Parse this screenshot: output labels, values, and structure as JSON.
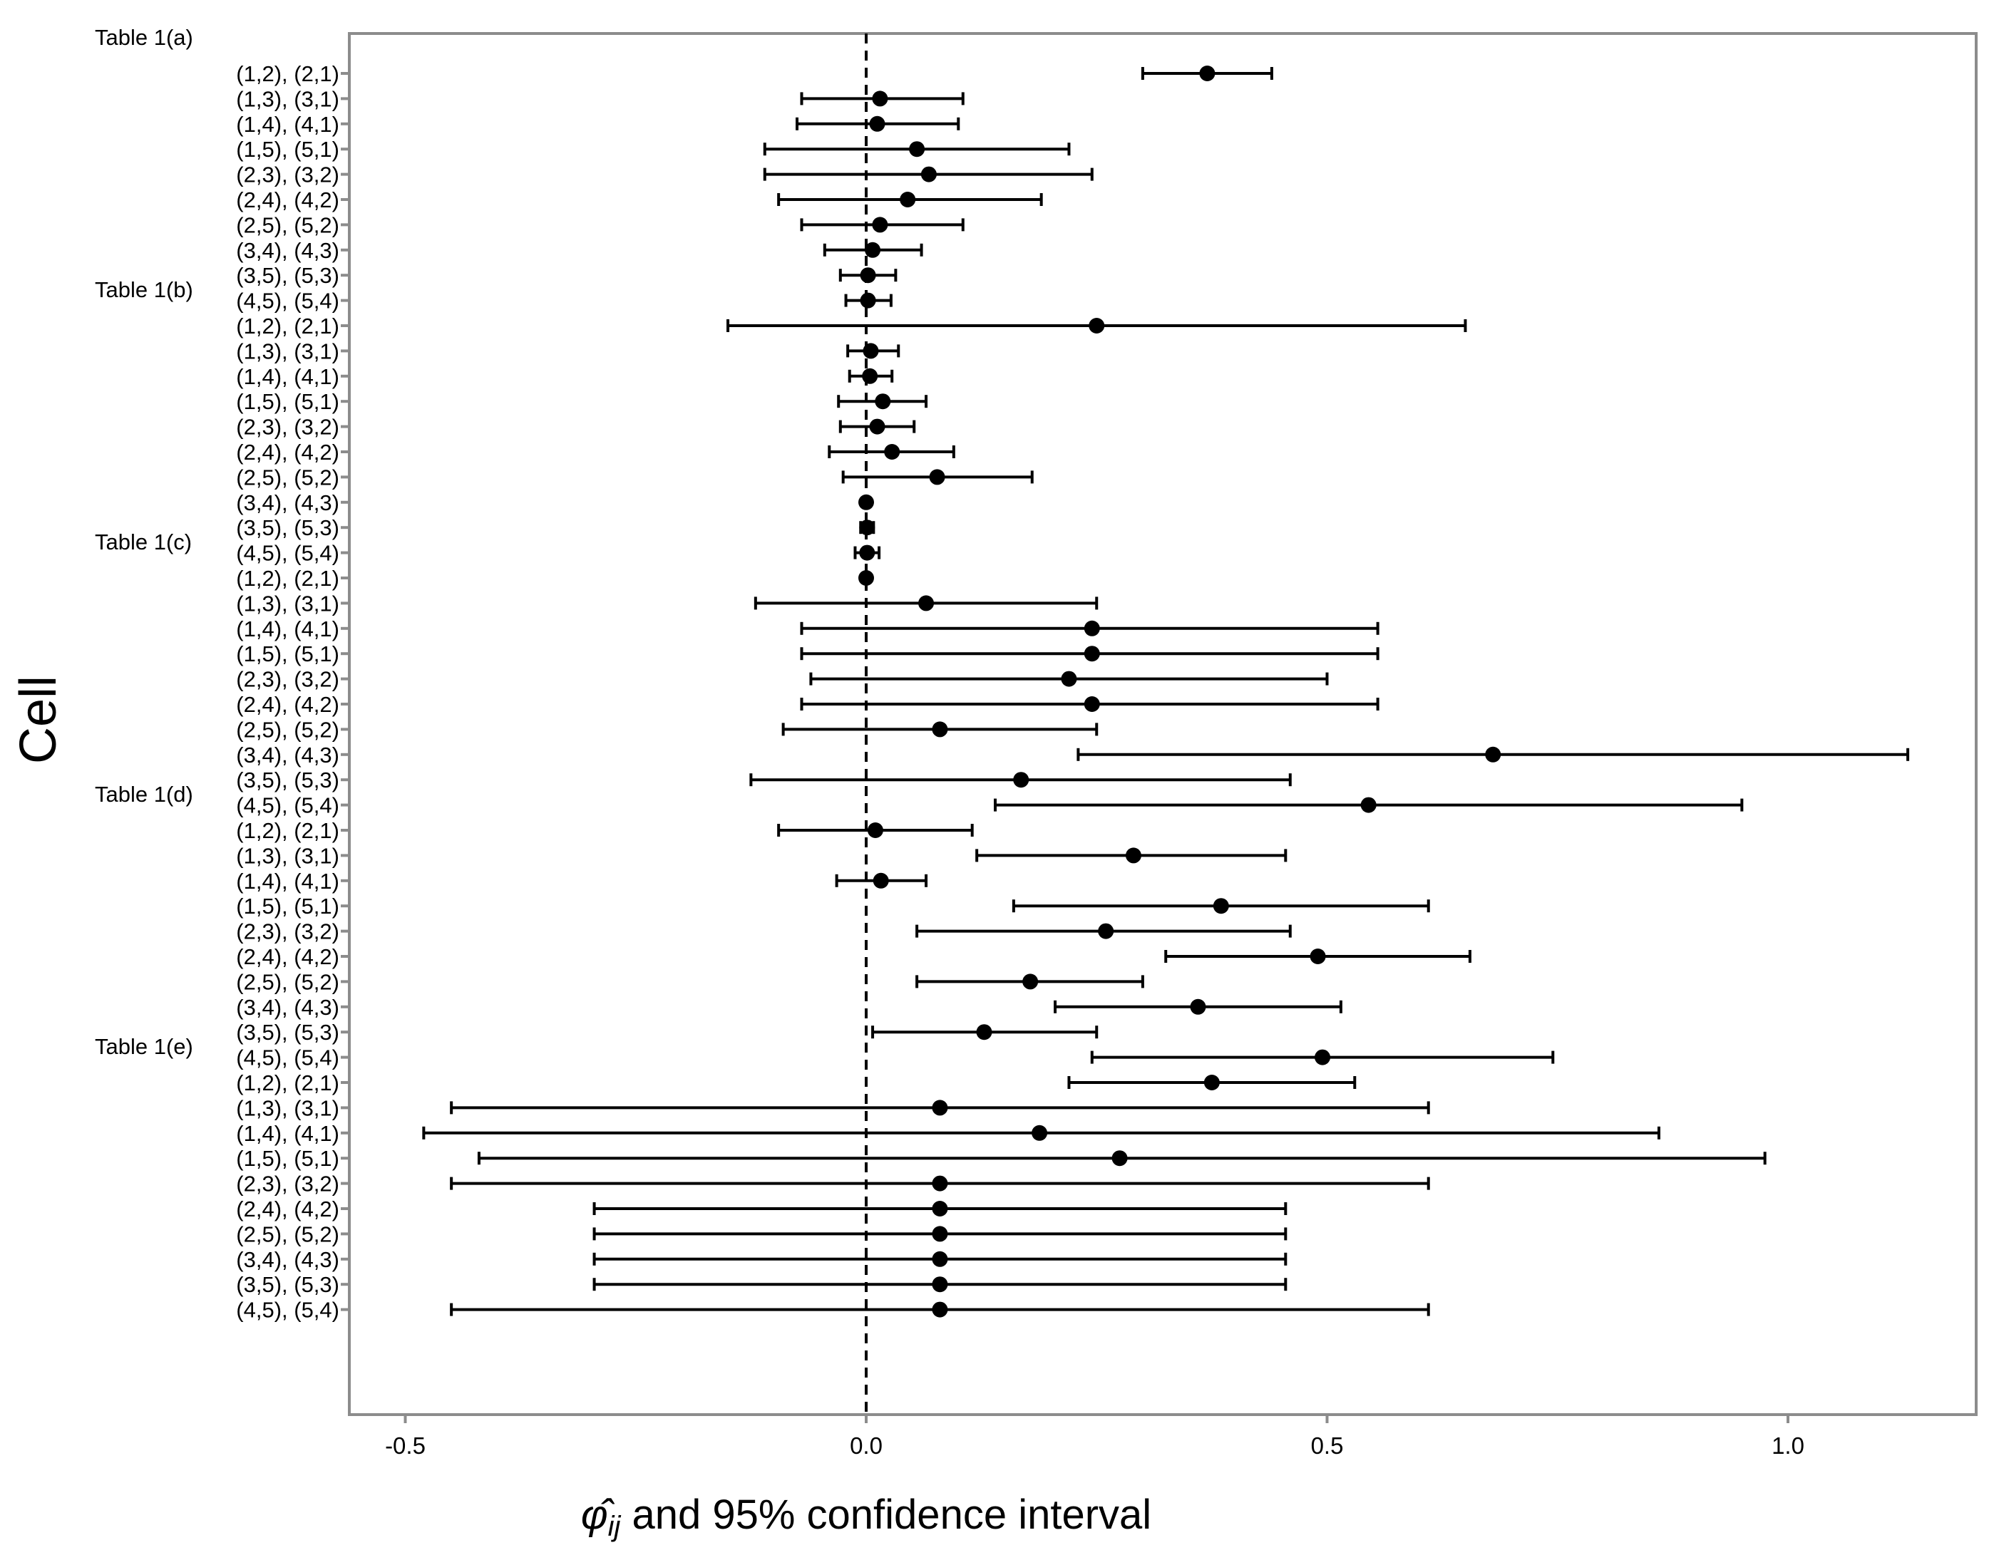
{
  "chart_data": {
    "type": "forest",
    "xlabel": "φ̂ij and 95% confidence interval",
    "xlabel_parts": {
      "symbol": "φ̂",
      "subscript": "ij",
      "rest": "and 95% confidence interval"
    },
    "ylabel": "Cell",
    "xlim": [
      -0.5,
      1.17
    ],
    "xticks": [
      -0.5,
      0.0,
      0.5,
      1.0
    ],
    "xtick_labels": [
      "-0.5",
      "0.0",
      "0.5",
      "1.0"
    ],
    "reference_line": 0.0,
    "reference_line_style": "dashed",
    "grid": false,
    "groups": [
      {
        "label": "Table 1(a)",
        "rows": [
          {
            "cell": "(1,2), (2,1)",
            "estimate": 0.37,
            "lower": 0.3,
            "upper": 0.44
          },
          {
            "cell": "(1,3), (3,1)",
            "estimate": 0.015,
            "lower": -0.07,
            "upper": 0.105
          },
          {
            "cell": "(1,4), (4,1)",
            "estimate": 0.012,
            "lower": -0.075,
            "upper": 0.1
          },
          {
            "cell": "(1,5), (5,1)",
            "estimate": 0.055,
            "lower": -0.11,
            "upper": 0.22
          },
          {
            "cell": "(2,3), (3,2)",
            "estimate": 0.068,
            "lower": -0.11,
            "upper": 0.245
          },
          {
            "cell": "(2,4), (4,2)",
            "estimate": 0.045,
            "lower": -0.095,
            "upper": 0.19
          },
          {
            "cell": "(2,5), (5,2)",
            "estimate": 0.015,
            "lower": -0.07,
            "upper": 0.105
          },
          {
            "cell": "(3,4), (4,3)",
            "estimate": 0.007,
            "lower": -0.045,
            "upper": 0.06
          },
          {
            "cell": "(3,5), (5,3)",
            "estimate": 0.002,
            "lower": -0.028,
            "upper": 0.032
          },
          {
            "cell": "(4,5), (5,4)",
            "estimate": 0.002,
            "lower": -0.022,
            "upper": 0.027
          }
        ]
      },
      {
        "label": "Table 1(b)",
        "rows": [
          {
            "cell": "(1,2), (2,1)",
            "estimate": 0.25,
            "lower": -0.15,
            "upper": 0.65
          },
          {
            "cell": "(1,3), (3,1)",
            "estimate": 0.005,
            "lower": -0.02,
            "upper": 0.035
          },
          {
            "cell": "(1,4), (4,1)",
            "estimate": 0.004,
            "lower": -0.018,
            "upper": 0.028
          },
          {
            "cell": "(1,5), (5,1)",
            "estimate": 0.018,
            "lower": -0.03,
            "upper": 0.065
          },
          {
            "cell": "(2,3), (3,2)",
            "estimate": 0.012,
            "lower": -0.028,
            "upper": 0.052
          },
          {
            "cell": "(2,4), (4,2)",
            "estimate": 0.028,
            "lower": -0.04,
            "upper": 0.095
          },
          {
            "cell": "(2,5), (5,2)",
            "estimate": 0.077,
            "lower": -0.025,
            "upper": 0.18
          },
          {
            "cell": "(3,4), (4,3)",
            "estimate": 0.0,
            "lower": 0.0,
            "upper": 0.0
          },
          {
            "cell": "(3,5), (5,3)",
            "estimate": 0.001,
            "lower": -0.006,
            "upper": 0.008
          },
          {
            "cell": "(4,5), (5,4)",
            "estimate": 0.001,
            "lower": -0.012,
            "upper": 0.014
          }
        ]
      },
      {
        "label": "Table 1(c)",
        "rows": [
          {
            "cell": "(1,2), (2,1)",
            "estimate": 0.0,
            "lower": 0.0,
            "upper": 0.0
          },
          {
            "cell": "(1,3), (3,1)",
            "estimate": 0.065,
            "lower": -0.12,
            "upper": 0.25
          },
          {
            "cell": "(1,4), (4,1)",
            "estimate": 0.245,
            "lower": -0.07,
            "upper": 0.555
          },
          {
            "cell": "(1,5), (5,1)",
            "estimate": 0.245,
            "lower": -0.07,
            "upper": 0.555
          },
          {
            "cell": "(2,3), (3,2)",
            "estimate": 0.22,
            "lower": -0.06,
            "upper": 0.5
          },
          {
            "cell": "(2,4), (4,2)",
            "estimate": 0.245,
            "lower": -0.07,
            "upper": 0.555
          },
          {
            "cell": "(2,5), (5,2)",
            "estimate": 0.08,
            "lower": -0.09,
            "upper": 0.25
          },
          {
            "cell": "(3,4), (4,3)",
            "estimate": 0.68,
            "lower": 0.23,
            "upper": 1.13
          },
          {
            "cell": "(3,5), (5,3)",
            "estimate": 0.168,
            "lower": -0.125,
            "upper": 0.46
          },
          {
            "cell": "(4,5), (5,4)",
            "estimate": 0.545,
            "lower": 0.14,
            "upper": 0.95
          }
        ]
      },
      {
        "label": "Table 1(d)",
        "rows": [
          {
            "cell": "(1,2), (2,1)",
            "estimate": 0.01,
            "lower": -0.095,
            "upper": 0.115
          },
          {
            "cell": "(1,3), (3,1)",
            "estimate": 0.29,
            "lower": 0.12,
            "upper": 0.455
          },
          {
            "cell": "(1,4), (4,1)",
            "estimate": 0.016,
            "lower": -0.032,
            "upper": 0.065
          },
          {
            "cell": "(1,5), (5,1)",
            "estimate": 0.385,
            "lower": 0.16,
            "upper": 0.61
          },
          {
            "cell": "(2,3), (3,2)",
            "estimate": 0.26,
            "lower": 0.055,
            "upper": 0.46
          },
          {
            "cell": "(2,4), (4,2)",
            "estimate": 0.49,
            "lower": 0.325,
            "upper": 0.655
          },
          {
            "cell": "(2,5), (5,2)",
            "estimate": 0.178,
            "lower": 0.055,
            "upper": 0.3
          },
          {
            "cell": "(3,4), (4,3)",
            "estimate": 0.36,
            "lower": 0.205,
            "upper": 0.515
          },
          {
            "cell": "(3,5), (5,3)",
            "estimate": 0.128,
            "lower": 0.007,
            "upper": 0.25
          },
          {
            "cell": "(4,5), (5,4)",
            "estimate": 0.495,
            "lower": 0.245,
            "upper": 0.745
          }
        ]
      },
      {
        "label": "Table 1(e)",
        "rows": [
          {
            "cell": "(1,2), (2,1)",
            "estimate": 0.375,
            "lower": 0.22,
            "upper": 0.53
          },
          {
            "cell": "(1,3), (3,1)",
            "estimate": 0.08,
            "lower": -0.45,
            "upper": 0.61
          },
          {
            "cell": "(1,4), (4,1)",
            "estimate": 0.188,
            "lower": -0.48,
            "upper": 0.86
          },
          {
            "cell": "(1,5), (5,1)",
            "estimate": 0.275,
            "lower": -0.42,
            "upper": 0.975
          },
          {
            "cell": "(2,3), (3,2)",
            "estimate": 0.08,
            "lower": -0.45,
            "upper": 0.61
          },
          {
            "cell": "(2,4), (4,2)",
            "estimate": 0.08,
            "lower": -0.295,
            "upper": 0.455
          },
          {
            "cell": "(2,5), (5,2)",
            "estimate": 0.08,
            "lower": -0.295,
            "upper": 0.455
          },
          {
            "cell": "(3,4), (4,3)",
            "estimate": 0.08,
            "lower": -0.295,
            "upper": 0.455
          },
          {
            "cell": "(3,5), (5,3)",
            "estimate": 0.08,
            "lower": -0.295,
            "upper": 0.455
          },
          {
            "cell": "(4,5), (5,4)",
            "estimate": 0.08,
            "lower": -0.45,
            "upper": 0.61
          }
        ]
      }
    ]
  },
  "colors": {
    "frame": "#8c8c8c",
    "marks": "#000000",
    "background": "#ffffff"
  }
}
